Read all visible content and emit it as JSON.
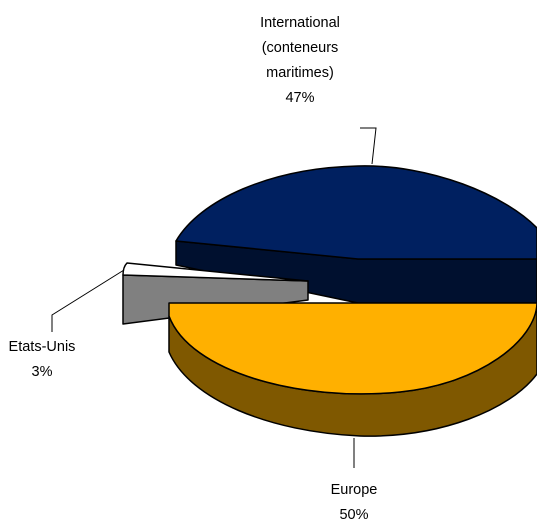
{
  "chart_data": {
    "type": "pie",
    "style": "3d-exploded",
    "title": "",
    "legend": "none",
    "slices": [
      {
        "label_lines": [
          "International",
          "(conteneurs",
          "maritimes)"
        ],
        "value_label": "47%",
        "value": 47,
        "color": "#002060",
        "side_color": "#00102f"
      },
      {
        "label_lines": [
          "Etats-Unis"
        ],
        "value_label": "3%",
        "value": 3,
        "color": "#ffffff",
        "side_color": "#808080"
      },
      {
        "label_lines": [
          "Europe"
        ],
        "value_label": "50%",
        "value": 50,
        "color": "#ffb000",
        "side_color": "#7f5800"
      }
    ]
  }
}
